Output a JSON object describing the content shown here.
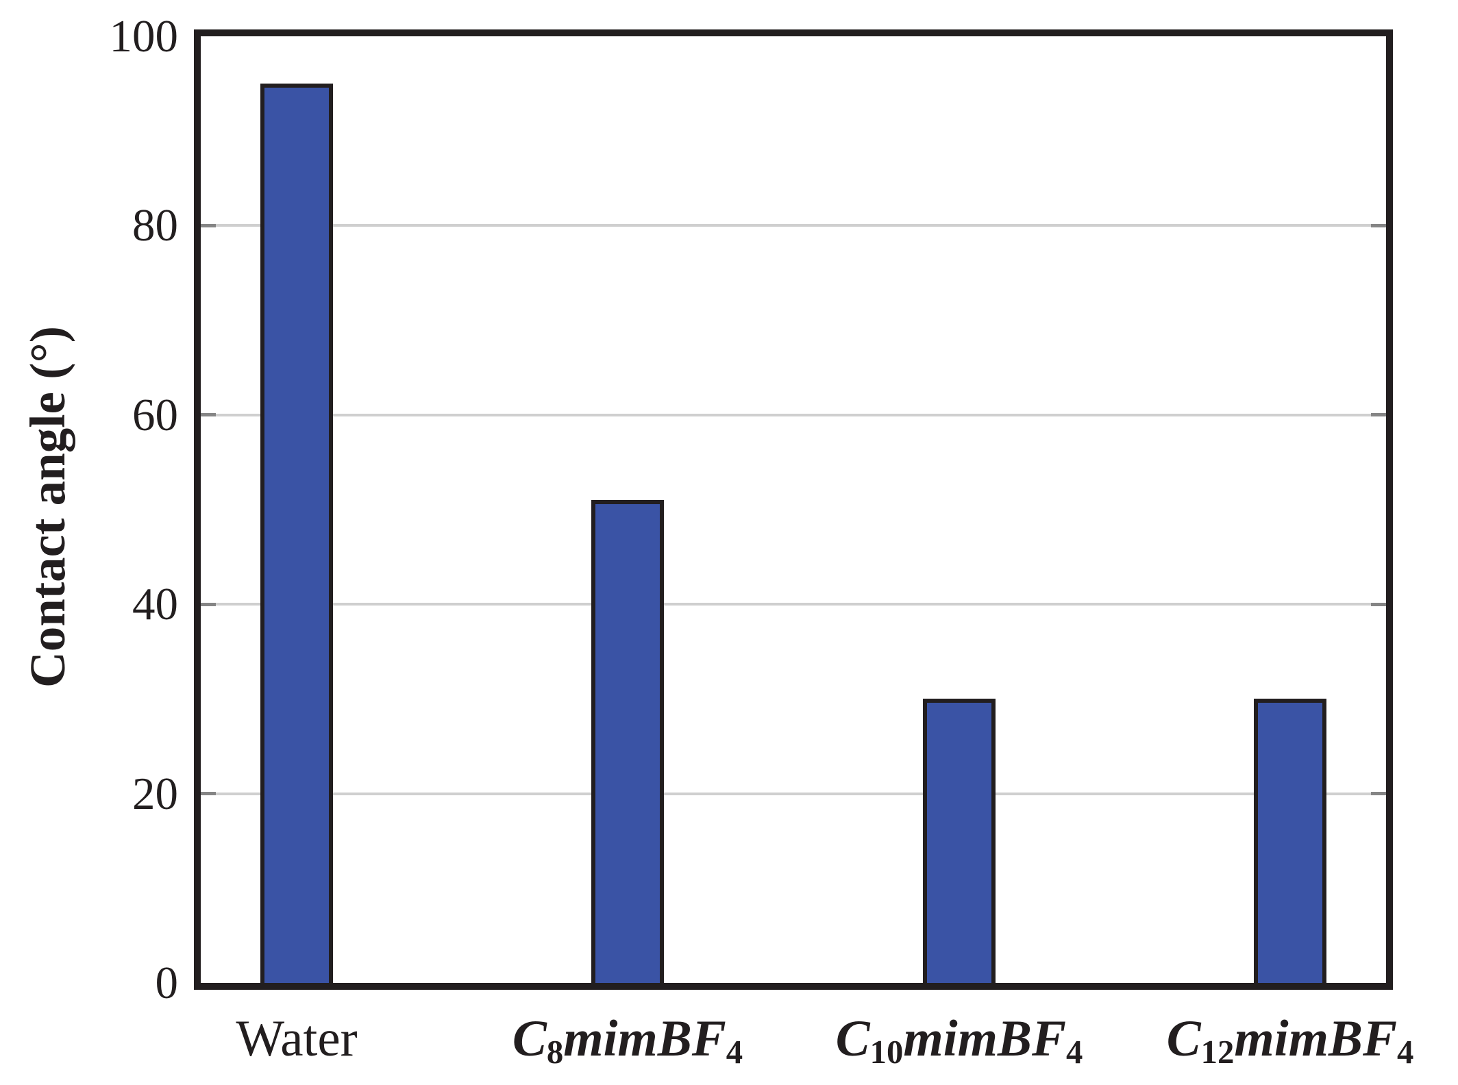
{
  "chart_data": {
    "type": "bar",
    "title": "",
    "xlabel": "",
    "ylabel": "Contact angle (°)",
    "categories": [
      "Water",
      "C8mimBF4",
      "C10mimBF4",
      "C12mimBF4"
    ],
    "categories_rich": [
      {
        "style": "plain",
        "pre": "Water",
        "sub1": "",
        "mid": "",
        "sub2": ""
      },
      {
        "style": "chem",
        "pre": "C",
        "sub1": "8",
        "mid": "mimBF",
        "sub2": "4"
      },
      {
        "style": "chem",
        "pre": "C",
        "sub1": "10",
        "mid": "mimBF",
        "sub2": "4"
      },
      {
        "style": "chem",
        "pre": "C",
        "sub1": "12",
        "mid": "mimBF",
        "sub2": "4"
      }
    ],
    "values": [
      95,
      51,
      30,
      30
    ],
    "ylim": [
      0,
      100
    ],
    "yticks": [
      0,
      20,
      40,
      60,
      80,
      100
    ],
    "grid": true,
    "gridline_values": [
      20,
      40,
      60,
      80
    ],
    "tick_values": [
      20,
      40,
      60,
      80
    ],
    "xlim": [
      -0.29,
      3.29
    ],
    "bar_width_units": 0.22,
    "legend": "none",
    "colors": {
      "bar_fill": "#3a53a5",
      "bar_edge": "#221e1f",
      "axis_frame": "#221e1f",
      "gridline": "#cfcfcf",
      "tick": "#858585",
      "text": "#221e1f",
      "background": "#ffffff"
    }
  }
}
